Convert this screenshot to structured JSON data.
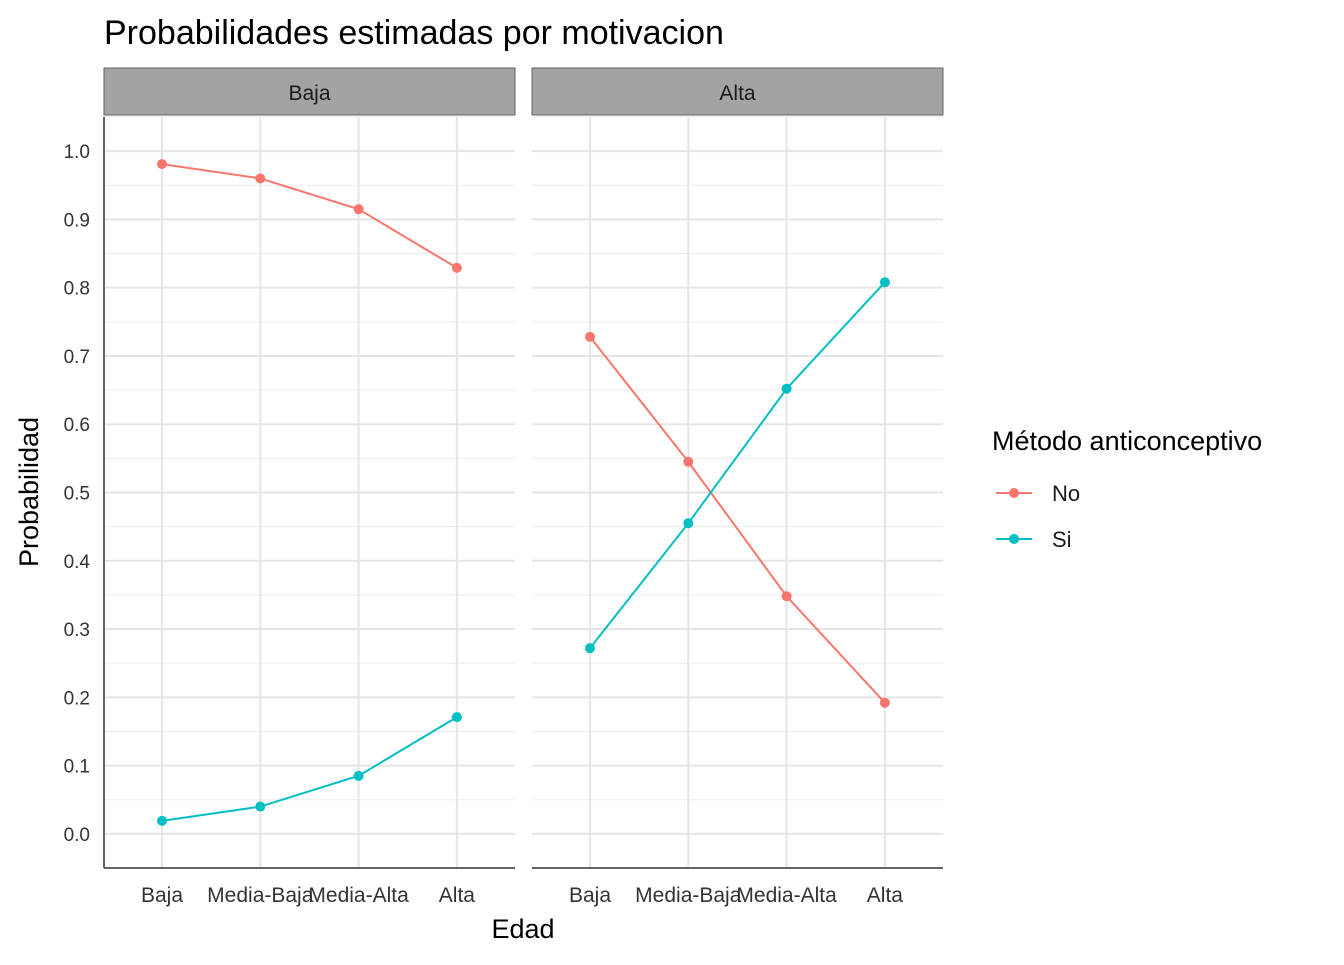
{
  "chart_data": {
    "type": "line",
    "title": "Probabilidades estimadas por motivacion",
    "xlabel": "Edad",
    "ylabel": "Probabilidad",
    "categories": [
      "Baja",
      "Media-Baja",
      "Media-Alta",
      "Alta"
    ],
    "ylim": [
      -0.05,
      1.05
    ],
    "yticks": [
      "0.0",
      "0.1",
      "0.2",
      "0.3",
      "0.4",
      "0.5",
      "0.6",
      "0.7",
      "0.8",
      "0.9",
      "1.0"
    ],
    "grid": true,
    "legend": {
      "title": "Método anticonceptivo",
      "placement": "right",
      "entries": [
        "No",
        "Si"
      ]
    },
    "colors": {
      "No": "#F8766D",
      "Si": "#00BFC4"
    },
    "panels": [
      {
        "label": "Baja",
        "series": [
          {
            "name": "No",
            "values": [
              0.981,
              0.96,
              0.915,
              0.829
            ]
          },
          {
            "name": "Si",
            "values": [
              0.019,
              0.04,
              0.085,
              0.171
            ]
          }
        ]
      },
      {
        "label": "Alta",
        "series": [
          {
            "name": "No",
            "values": [
              0.728,
              0.545,
              0.348,
              0.192
            ]
          },
          {
            "name": "Si",
            "values": [
              0.272,
              0.455,
              0.652,
              0.808
            ]
          }
        ]
      }
    ]
  }
}
